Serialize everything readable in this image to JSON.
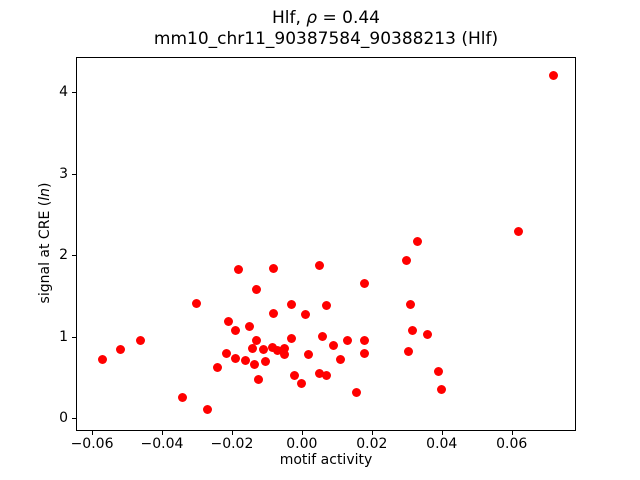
{
  "title_parts": {
    "prefix": "Hlf, ",
    "italic": "ρ",
    "suffix": " = 0.44"
  },
  "ylabel_parts": {
    "prefix": "signal at CRE (",
    "italic": "ln",
    "suffix": ")"
  },
  "chart_data": {
    "type": "scatter",
    "title": "Hlf, ρ = 0.44",
    "subtitle": "mm10_chr11_90387584_90388213 (Hlf)",
    "correlation_rho": 0.44,
    "xlabel": "motif activity",
    "ylabel": "signal at CRE (ln)",
    "marker_color": "#ff0000",
    "grid": false,
    "legend": "none",
    "xlim": [
      -0.0643,
      0.0781
    ],
    "ylim": [
      -0.143,
      4.417
    ],
    "xticks": [
      -0.06,
      -0.04,
      -0.02,
      0.0,
      0.02,
      0.04,
      0.06
    ],
    "xtick_labels": [
      "−0.06",
      "−0.04",
      "−0.02",
      "0.00",
      "0.02",
      "0.04",
      "0.06"
    ],
    "yticks": [
      0,
      1,
      2,
      3,
      4
    ],
    "ytick_labels": [
      "0",
      "1",
      "2",
      "3",
      "4"
    ],
    "points": [
      [
        0.072,
        4.2
      ],
      [
        0.062,
        2.29
      ],
      [
        0.033,
        2.17
      ],
      [
        0.03,
        1.93
      ],
      [
        0.005,
        1.87
      ],
      [
        -0.008,
        1.84
      ],
      [
        -0.018,
        1.83
      ],
      [
        0.018,
        1.65
      ],
      [
        -0.013,
        1.58
      ],
      [
        -0.03,
        1.41
      ],
      [
        -0.003,
        1.39
      ],
      [
        0.007,
        1.38
      ],
      [
        0.031,
        1.39
      ],
      [
        -0.008,
        1.29
      ],
      [
        0.001,
        1.27
      ],
      [
        -0.021,
        1.19
      ],
      [
        -0.019,
        1.08
      ],
      [
        -0.015,
        1.12
      ],
      [
        0.0315,
        1.08
      ],
      [
        0.036,
        1.03
      ],
      [
        -0.013,
        0.96
      ],
      [
        -0.003,
        0.98
      ],
      [
        0.006,
        1.0
      ],
      [
        -0.014,
        0.86
      ],
      [
        -0.011,
        0.84
      ],
      [
        -0.0085,
        0.87
      ],
      [
        -0.007,
        0.83
      ],
      [
        -0.005,
        0.85
      ],
      [
        -0.005,
        0.78
      ],
      [
        0.002,
        0.78
      ],
      [
        0.009,
        0.89
      ],
      [
        0.013,
        0.95
      ],
      [
        0.018,
        0.95
      ],
      [
        0.018,
        0.8
      ],
      [
        0.011,
        0.72
      ],
      [
        0.0305,
        0.82
      ],
      [
        -0.0215,
        0.8
      ],
      [
        -0.019,
        0.73
      ],
      [
        -0.024,
        0.62
      ],
      [
        -0.016,
        0.71
      ],
      [
        -0.0135,
        0.66
      ],
      [
        -0.0105,
        0.7
      ],
      [
        -0.0125,
        0.47
      ],
      [
        -0.002,
        0.53
      ],
      [
        0.0,
        0.43
      ],
      [
        0.005,
        0.55
      ],
      [
        0.007,
        0.52
      ],
      [
        0.0155,
        0.32
      ],
      [
        0.039,
        0.57
      ],
      [
        0.04,
        0.35
      ],
      [
        -0.057,
        0.72
      ],
      [
        -0.052,
        0.84
      ],
      [
        -0.046,
        0.95
      ],
      [
        -0.034,
        0.26
      ],
      [
        -0.027,
        0.11
      ]
    ]
  }
}
